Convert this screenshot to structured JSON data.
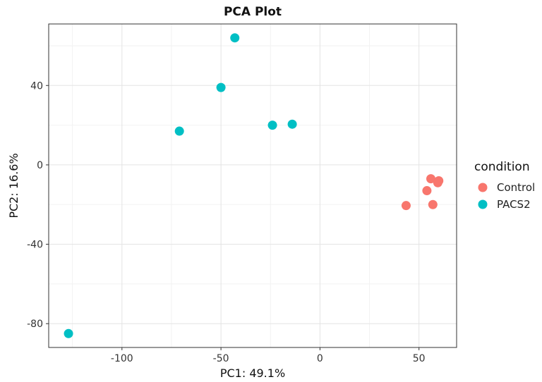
{
  "chart_data": {
    "type": "scatter",
    "title": "PCA Plot",
    "xlabel": "PC1: 49.1%",
    "ylabel": "PC2: 16.6%",
    "xlim": [
      -137,
      69
    ],
    "ylim": [
      -92,
      71
    ],
    "x_ticks": [
      -100,
      -50,
      0,
      50
    ],
    "y_ticks": [
      -80,
      -40,
      0,
      40
    ],
    "grid": true,
    "legend": {
      "title": "condition",
      "position": "right"
    },
    "series": [
      {
        "name": "Control",
        "color": "#F8766D",
        "points": [
          {
            "x": 43.5,
            "y": -20.5
          },
          {
            "x": 54,
            "y": -13
          },
          {
            "x": 56,
            "y": -7
          },
          {
            "x": 57,
            "y": -20
          },
          {
            "x": 59.5,
            "y": -9
          },
          {
            "x": 60,
            "y": -8
          }
        ]
      },
      {
        "name": "PACS2",
        "color": "#00BFC4",
        "points": [
          {
            "x": -127,
            "y": -85
          },
          {
            "x": -71,
            "y": 17
          },
          {
            "x": -50,
            "y": 39
          },
          {
            "x": -43,
            "y": 64
          },
          {
            "x": -24,
            "y": 20
          },
          {
            "x": -14,
            "y": 20.5
          }
        ]
      }
    ]
  }
}
